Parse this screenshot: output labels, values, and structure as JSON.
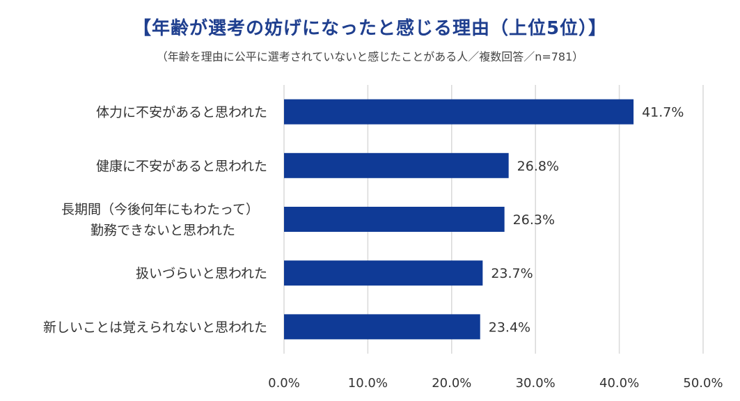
{
  "title": "【年齢が選考の妨げになったと感じる理由（上位5位）】",
  "subtitle": "（年齢を理由に公平に選考されていないと感じたことがある人／複数回答／n=781）",
  "colors": {
    "bar": "#0f3a96",
    "grid": "#d9d9d9",
    "title": "#1f3f8f"
  },
  "chart_data": {
    "type": "bar",
    "orientation": "horizontal",
    "title": "【年齢が選考の妨げになったと感じる理由（上位5位）】",
    "subtitle": "（年齢を理由に公平に選考されていないと感じたことがある人／複数回答／n=781）",
    "categories": [
      [
        "体力に不安があると思われた"
      ],
      [
        "健康に不安があると思われた"
      ],
      [
        "長期間（今後何年にもわたって）",
        "勤務できないと思われた"
      ],
      [
        "扱いづらいと思われた"
      ],
      [
        "新しいことは覚えられないと思われた"
      ]
    ],
    "values": [
      41.7,
      26.8,
      26.3,
      23.7,
      23.4
    ],
    "value_labels": [
      "41.7%",
      "26.8%",
      "26.3%",
      "23.7%",
      "23.4%"
    ],
    "xlim": [
      0,
      50
    ],
    "ticks": [
      0,
      10,
      20,
      30,
      40,
      50
    ],
    "tick_labels": [
      "0.0%",
      "10.0%",
      "20.0%",
      "30.0%",
      "40.0%",
      "50.0%"
    ],
    "grid": true,
    "legend": "none"
  }
}
